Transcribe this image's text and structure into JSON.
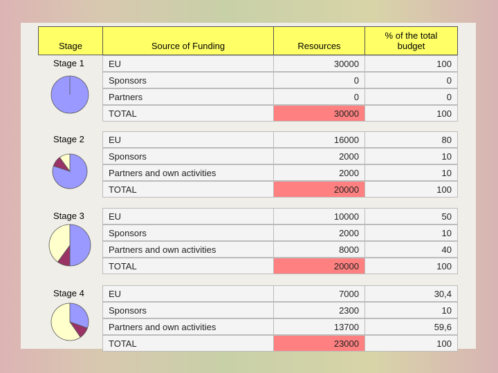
{
  "header": {
    "stage": "Stage",
    "source": "Source of Funding",
    "resources": "Resources",
    "percent": "% of the total budget"
  },
  "stages": [
    {
      "label": "Stage 1",
      "rows": [
        {
          "source": "EU",
          "resources": "30000",
          "percent": "100"
        },
        {
          "source": "Sponsors",
          "resources": "0",
          "percent": "0"
        },
        {
          "source": "Partners",
          "resources": "0",
          "percent": "0"
        },
        {
          "source": "TOTAL",
          "resources": "30000",
          "percent": "100"
        }
      ]
    },
    {
      "label": "Stage 2",
      "rows": [
        {
          "source": "EU",
          "resources": "16000",
          "percent": "80"
        },
        {
          "source": "Sponsors",
          "resources": "2000",
          "percent": "10"
        },
        {
          "source": "Partners and own activities",
          "resources": "2000",
          "percent": "10"
        },
        {
          "source": "TOTAL",
          "resources": "20000",
          "percent": "100"
        }
      ]
    },
    {
      "label": "Stage 3",
      "rows": [
        {
          "source": "EU",
          "resources": "10000",
          "percent": "50"
        },
        {
          "source": "Sponsors",
          "resources": "2000",
          "percent": "10"
        },
        {
          "source": "Partners and own activities",
          "resources": "8000",
          "percent": "40"
        },
        {
          "source": "TOTAL",
          "resources": "20000",
          "percent": "100"
        }
      ]
    },
    {
      "label": "Stage 4",
      "rows": [
        {
          "source": "EU",
          "resources": "7000",
          "percent": "30,4"
        },
        {
          "source": "Sponsors",
          "resources": "2300",
          "percent": "10"
        },
        {
          "source": "Partners and own activities",
          "resources": "13700",
          "percent": "59,6"
        },
        {
          "source": "TOTAL",
          "resources": "23000",
          "percent": "100"
        }
      ]
    }
  ]
}
